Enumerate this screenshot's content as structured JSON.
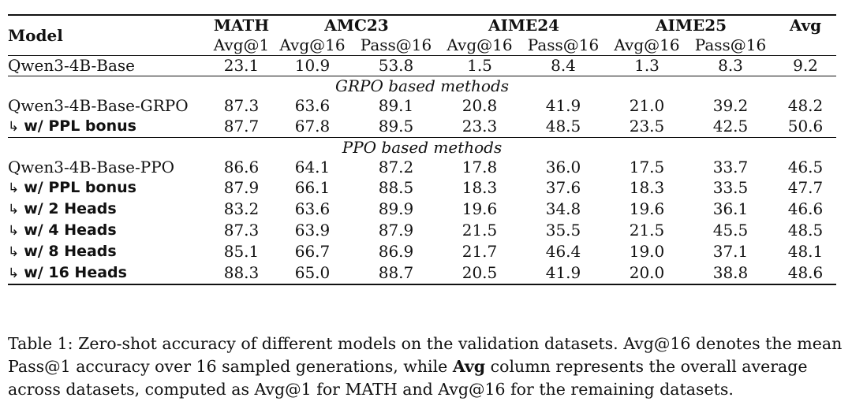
{
  "table": {
    "model_header": "Model",
    "groups": [
      {
        "name": "MATH",
        "subs": [
          "Avg@1"
        ]
      },
      {
        "name": "AMC23",
        "subs": [
          "Avg@16",
          "Pass@16"
        ]
      },
      {
        "name": "AIME24",
        "subs": [
          "Avg@16",
          "Pass@16"
        ]
      },
      {
        "name": "AIME25",
        "subs": [
          "Avg@16",
          "Pass@16"
        ]
      },
      {
        "name": "Avg",
        "subs": [
          ""
        ]
      }
    ],
    "baseline": {
      "model": "Qwen3-4B-Base",
      "values": [
        "23.1",
        "10.9",
        "53.8",
        "1.5",
        "8.4",
        "1.3",
        "8.3",
        "9.2"
      ]
    },
    "sections": [
      {
        "title": "GRPO based methods",
        "rows": [
          {
            "model": "Qwen3-4B-Base-GRPO",
            "sub": false,
            "values": [
              "87.3",
              "63.6",
              "89.1",
              "20.8",
              "41.9",
              "21.0",
              "39.2",
              "48.2"
            ]
          },
          {
            "model": "w/ PPL bonus",
            "sub": true,
            "values": [
              "87.7",
              "67.8",
              "89.5",
              "23.3",
              "48.5",
              "23.5",
              "42.5",
              "50.6"
            ]
          }
        ]
      },
      {
        "title": "PPO based methods",
        "rows": [
          {
            "model": "Qwen3-4B-Base-PPO",
            "sub": false,
            "values": [
              "86.6",
              "64.1",
              "87.2",
              "17.8",
              "36.0",
              "17.5",
              "33.7",
              "46.5"
            ]
          },
          {
            "model": "w/ PPL bonus",
            "sub": true,
            "values": [
              "87.9",
              "66.1",
              "88.5",
              "18.3",
              "37.6",
              "18.3",
              "33.5",
              "47.7"
            ]
          },
          {
            "model": "w/ 2 Heads",
            "sub": true,
            "values": [
              "83.2",
              "63.6",
              "89.9",
              "19.6",
              "34.8",
              "19.6",
              "36.1",
              "46.6"
            ]
          },
          {
            "model": "w/ 4 Heads",
            "sub": true,
            "values": [
              "87.3",
              "63.9",
              "87.9",
              "21.5",
              "35.5",
              "21.5",
              "45.5",
              "48.5"
            ]
          },
          {
            "model": "w/ 8 Heads",
            "sub": true,
            "values": [
              "85.1",
              "66.7",
              "86.9",
              "21.7",
              "46.4",
              "19.0",
              "37.1",
              "48.1"
            ]
          },
          {
            "model": "w/ 16 Heads",
            "sub": true,
            "values": [
              "88.3",
              "65.0",
              "88.7",
              "20.5",
              "41.9",
              "20.0",
              "38.8",
              "48.6"
            ]
          }
        ]
      }
    ],
    "sub_arrow": "↳"
  },
  "caption": {
    "part1": "Table 1: Zero-shot accuracy of different models on the validation datasets. Avg@16 denotes the mean Pass@1 accuracy over 16 sampled generations, while ",
    "bold": "Avg",
    "part2": " column represents the overall average across datasets, computed as Avg@1 for MATH and Avg@16 for the remaining datasets."
  }
}
